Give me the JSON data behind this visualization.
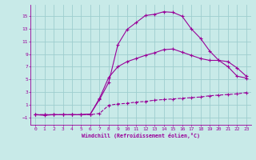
{
  "xlabel": "Windchill (Refroidissement éolien,°C)",
  "bg_color": "#c8eae8",
  "line_color": "#990099",
  "xlim": [
    -0.5,
    23.5
  ],
  "ylim": [
    -2.2,
    16.8
  ],
  "xticks": [
    0,
    1,
    2,
    3,
    4,
    5,
    6,
    7,
    8,
    9,
    10,
    11,
    12,
    13,
    14,
    15,
    16,
    17,
    18,
    19,
    20,
    21,
    22,
    23
  ],
  "yticks": [
    -1,
    1,
    3,
    5,
    7,
    9,
    11,
    13,
    15
  ],
  "grid_color": "#9ecece",
  "series": [
    {
      "x": [
        0,
        1,
        2,
        3,
        4,
        5,
        6,
        7,
        8,
        9,
        10,
        11,
        12,
        13,
        14,
        15,
        16,
        17,
        18,
        19,
        20,
        21,
        22,
        23
      ],
      "y": [
        -0.6,
        -0.6,
        -0.6,
        -0.6,
        -0.6,
        -0.6,
        -0.6,
        -0.4,
        0.9,
        1.1,
        1.2,
        1.4,
        1.5,
        1.7,
        1.8,
        1.9,
        2.0,
        2.1,
        2.2,
        2.4,
        2.5,
        2.6,
        2.7,
        2.9
      ],
      "linestyle": "--",
      "marker": "+"
    },
    {
      "x": [
        0,
        1,
        2,
        3,
        4,
        5,
        6,
        7,
        8,
        9,
        10,
        11,
        12,
        13,
        14,
        15,
        16,
        17,
        18,
        19,
        20,
        21,
        22,
        23
      ],
      "y": [
        -0.6,
        -0.6,
        -0.6,
        -0.6,
        -0.6,
        -0.6,
        -0.5,
        2.0,
        5.3,
        7.0,
        7.8,
        8.3,
        8.8,
        9.2,
        9.7,
        9.8,
        9.3,
        8.8,
        8.3,
        8.0,
        8.0,
        7.8,
        6.8,
        5.5
      ],
      "linestyle": "-",
      "marker": "+"
    },
    {
      "x": [
        0,
        1,
        2,
        3,
        4,
        5,
        6,
        7,
        8,
        9,
        10,
        11,
        12,
        13,
        14,
        15,
        16,
        17,
        18,
        19,
        20,
        21,
        22,
        23
      ],
      "y": [
        -0.6,
        -0.7,
        -0.6,
        -0.6,
        -0.6,
        -0.6,
        -0.5,
        1.8,
        4.5,
        10.5,
        12.9,
        14.0,
        15.1,
        15.3,
        15.7,
        15.6,
        15.0,
        13.0,
        11.5,
        9.5,
        8.0,
        7.0,
        5.5,
        5.2
      ],
      "linestyle": "-",
      "marker": "+"
    }
  ]
}
